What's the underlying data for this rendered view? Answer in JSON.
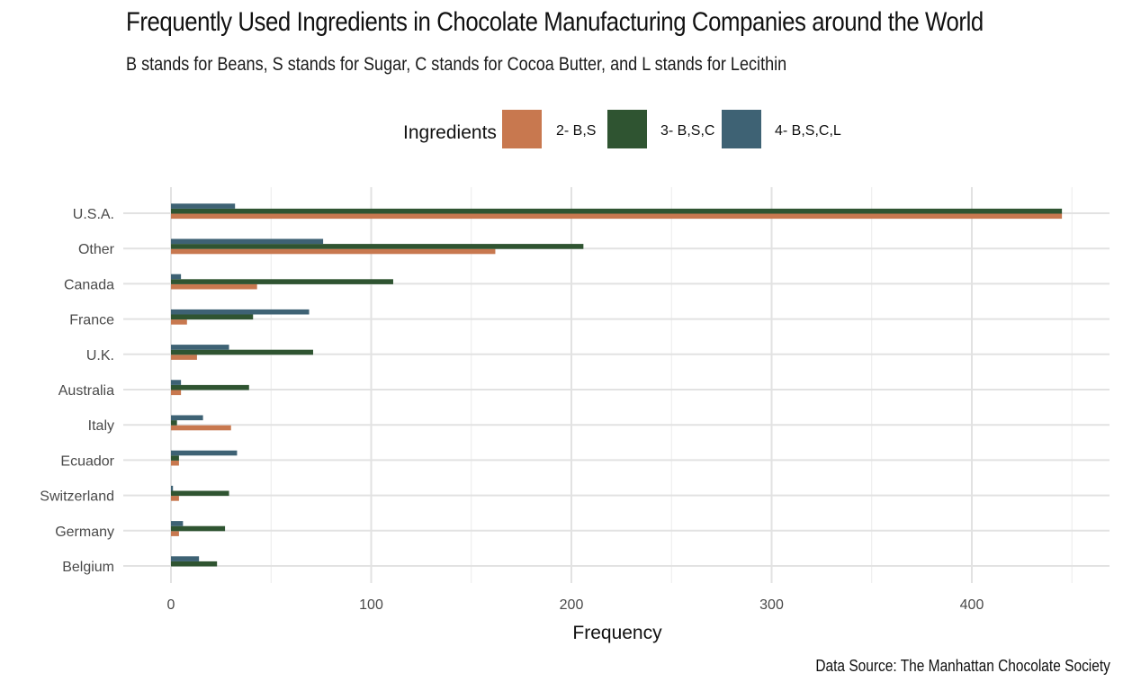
{
  "chart_data": {
    "type": "bar",
    "orientation": "horizontal",
    "title": "Frequently Used Ingredients in Chocolate Manufacturing Companies around the World",
    "subtitle": "B stands for Beans, S stands for Sugar, C stands for Cocoa Butter, and L stands for Lecithin",
    "caption": "Data Source: The Manhattan Chocolate Society",
    "xlabel": "Frequency",
    "ylabel": "",
    "xlim": [
      0,
      450
    ],
    "xticks": [
      0,
      100,
      200,
      300,
      400
    ],
    "grid": true,
    "legend": {
      "title": "Ingredients",
      "position": "top"
    },
    "categories": [
      "U.S.A.",
      "Other",
      "Canada",
      "France",
      "U.K.",
      "Australia",
      "Italy",
      "Ecuador",
      "Switzerland",
      "Germany",
      "Belgium"
    ],
    "series": [
      {
        "name": "2- B,S",
        "color": "#c8784f",
        "values": [
          445,
          162,
          43,
          8,
          13,
          5,
          30,
          4,
          4,
          4,
          0
        ]
      },
      {
        "name": "3- B,S,C",
        "color": "#2f5431",
        "values": [
          445,
          206,
          111,
          41,
          71,
          39,
          3,
          4,
          29,
          27,
          23
        ]
      },
      {
        "name": "4- B,S,C,L",
        "color": "#3e6274",
        "values": [
          32,
          76,
          5,
          69,
          29,
          5,
          16,
          33,
          1,
          6,
          14
        ]
      }
    ]
  }
}
